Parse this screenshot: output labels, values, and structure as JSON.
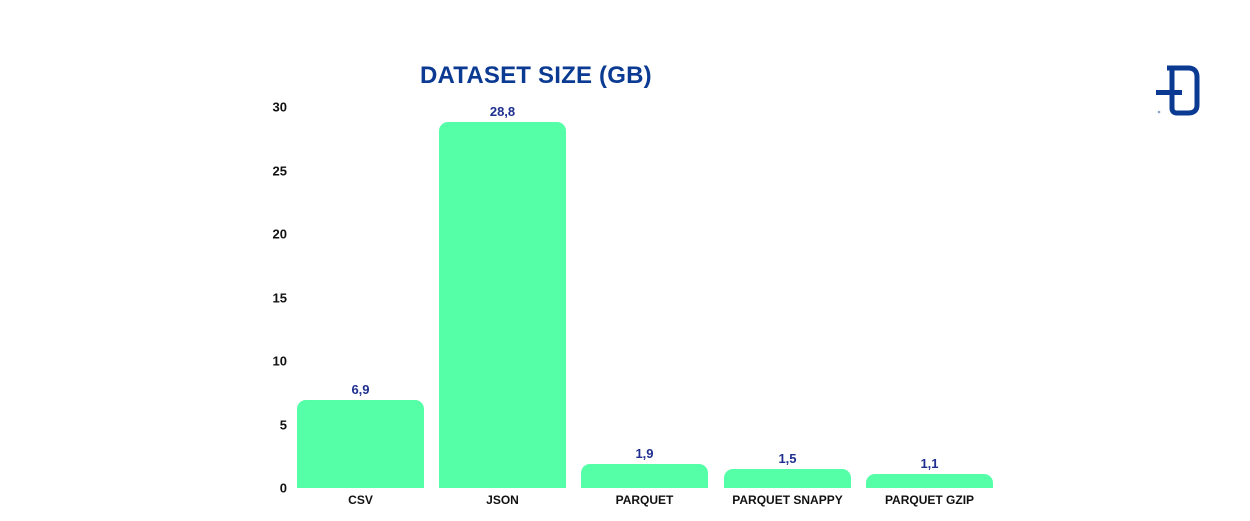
{
  "header": {
    "title": "DATASET SIZE (GB)",
    "logo": "brand-logo-icon"
  },
  "colors": {
    "bar": "#55ffa8",
    "title": "#0b3a93",
    "value_label": "#1f2f8f",
    "axis_text": "#111111"
  },
  "chart_data": {
    "type": "bar",
    "title": "DATASET SIZE (GB)",
    "xlabel": "",
    "ylabel": "",
    "categories": [
      "CSV",
      "JSON",
      "PARQUET",
      "PARQUET SNAPPY",
      "PARQUET GZIP"
    ],
    "values": [
      6.9,
      28.8,
      1.9,
      1.5,
      1.1
    ],
    "value_labels": [
      "6,9",
      "28,8",
      "1,9",
      "1,5",
      "1,1"
    ],
    "yticks": [
      "0",
      "5",
      "10",
      "15",
      "20",
      "25",
      "30"
    ],
    "ylim": [
      0,
      30
    ],
    "grid": false,
    "legend": null
  }
}
